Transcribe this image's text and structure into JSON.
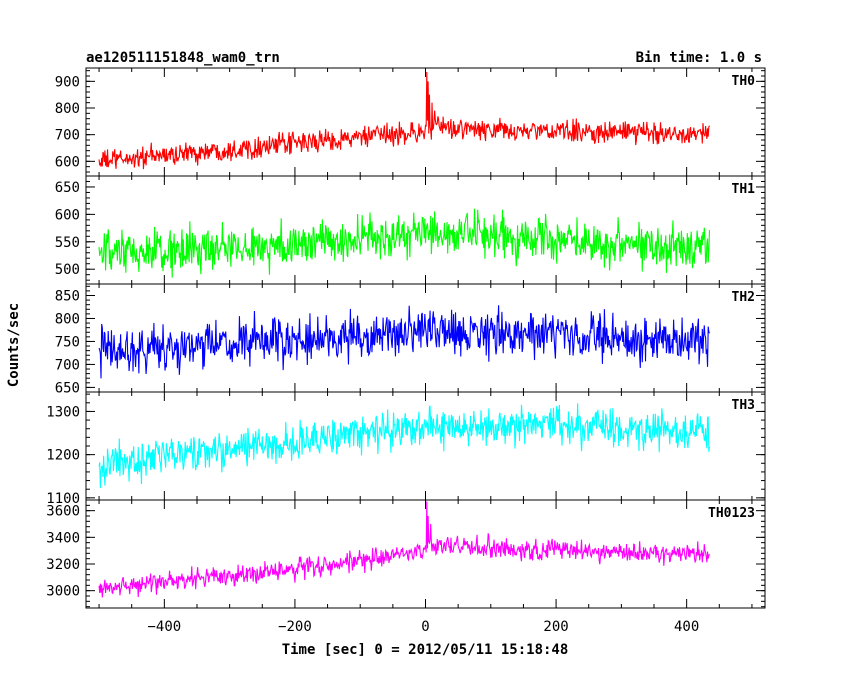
{
  "header": {
    "title": "ae120511151848_wam0_trn",
    "bin_time": "Bin time: 1.0 s"
  },
  "chart_data": {
    "type": "line",
    "layout": "stacked-panels",
    "xlabel": "Time [sec] 0 = 2012/05/11 15:18:48",
    "ylabel": "Counts/sec",
    "xlim": [
      -520,
      520
    ],
    "x_ticks": [
      -400,
      -200,
      0,
      200,
      400
    ],
    "x_tick_labels": [
      "−400",
      "−200",
      "0",
      "200",
      "400"
    ],
    "x_range_data": [
      -500,
      435
    ],
    "bin_time_s": 1.0,
    "grid": false,
    "panels": [
      {
        "name": "TH0",
        "color": "#ff0000",
        "ylim": [
          545,
          950
        ],
        "y_ticks": [
          600,
          700,
          800,
          900
        ],
        "baseline": [
          [
            -500,
            600
          ],
          [
            -300,
            645
          ],
          [
            -100,
            690
          ],
          [
            -5,
            710
          ],
          [
            0,
            720
          ],
          [
            20,
            728
          ],
          [
            100,
            715
          ],
          [
            435,
            705
          ]
        ],
        "noise": 28,
        "spikes": [
          {
            "x": 2,
            "y": 935
          },
          {
            "x": 4,
            "y": 900
          },
          {
            "x": 6,
            "y": 850
          },
          {
            "x": 10,
            "y": 820
          },
          {
            "x": 14,
            "y": 790
          }
        ]
      },
      {
        "name": "TH1",
        "color": "#00ff00",
        "ylim": [
          473,
          670
        ],
        "y_ticks": [
          500,
          550,
          600,
          650
        ],
        "baseline": [
          [
            -500,
            525
          ],
          [
            -200,
            545
          ],
          [
            0,
            565
          ],
          [
            200,
            555
          ],
          [
            435,
            540
          ]
        ],
        "noise": 28,
        "spikes": []
      },
      {
        "name": "TH2",
        "color": "#0000ff",
        "ylim": [
          640,
          875
        ],
        "y_ticks": [
          650,
          700,
          750,
          800,
          850
        ],
        "baseline": [
          [
            -500,
            730
          ],
          [
            -200,
            750
          ],
          [
            0,
            770
          ],
          [
            200,
            765
          ],
          [
            435,
            745
          ]
        ],
        "noise": 34,
        "spikes": []
      },
      {
        "name": "TH3",
        "color": "#00ffff",
        "ylim": [
          1095,
          1345
        ],
        "y_ticks": [
          1100,
          1200,
          1300
        ],
        "baseline": [
          [
            -500,
            1175
          ],
          [
            -200,
            1230
          ],
          [
            0,
            1265
          ],
          [
            200,
            1265
          ],
          [
            435,
            1255
          ]
        ],
        "noise": 30,
        "spikes": []
      },
      {
        "name": "TH0123",
        "color": "#ff00ff",
        "ylim": [
          2870,
          3680
        ],
        "y_ticks": [
          3000,
          3200,
          3400,
          3600
        ],
        "baseline": [
          [
            -500,
            3020
          ],
          [
            -300,
            3110
          ],
          [
            -100,
            3220
          ],
          [
            -5,
            3290
          ],
          [
            0,
            3310
          ],
          [
            20,
            3340
          ],
          [
            100,
            3320
          ],
          [
            435,
            3270
          ]
        ],
        "noise": 55,
        "spikes": [
          {
            "x": 2,
            "y": 3670
          },
          {
            "x": 4,
            "y": 3560
          },
          {
            "x": 8,
            "y": 3500
          }
        ]
      }
    ]
  }
}
